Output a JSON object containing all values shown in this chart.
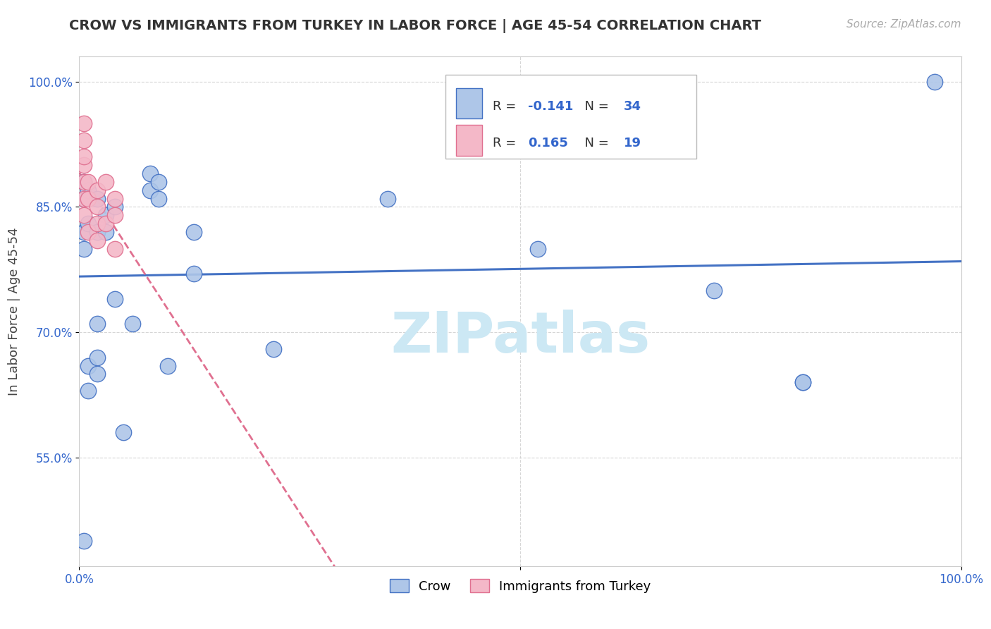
{
  "title": "CROW VS IMMIGRANTS FROM TURKEY IN LABOR FORCE | AGE 45-54 CORRELATION CHART",
  "source": "Source: ZipAtlas.com",
  "ylabel": "In Labor Force | Age 45-54",
  "crow_R": "-0.141",
  "crow_N": "34",
  "turkey_R": "0.165",
  "turkey_N": "19",
  "crow_color": "#aec6e8",
  "turkey_color": "#f4b8c8",
  "crow_line_color": "#4472c4",
  "turkey_line_color": "#e07090",
  "watermark_text": "ZIPatlas",
  "watermark_color": "#cce8f4",
  "xlim": [
    0.0,
    1.0
  ],
  "ylim": [
    0.42,
    1.03
  ],
  "yticks": [
    0.55,
    0.7,
    0.85,
    1.0
  ],
  "xticks": [
    0.0,
    0.5,
    1.0
  ],
  "xtick_labels": [
    "0.0%",
    "",
    "100.0%"
  ],
  "crow_points_x": [
    0.005,
    0.005,
    0.005,
    0.005,
    0.005,
    0.01,
    0.01,
    0.01,
    0.01,
    0.02,
    0.02,
    0.02,
    0.02,
    0.02,
    0.03,
    0.03,
    0.04,
    0.04,
    0.05,
    0.06,
    0.08,
    0.08,
    0.09,
    0.09,
    0.1,
    0.13,
    0.13,
    0.22,
    0.35,
    0.52,
    0.72,
    0.82,
    0.82,
    0.97
  ],
  "crow_points_y": [
    0.45,
    0.8,
    0.82,
    0.86,
    0.88,
    0.63,
    0.66,
    0.83,
    0.87,
    0.65,
    0.67,
    0.71,
    0.82,
    0.86,
    0.82,
    0.84,
    0.74,
    0.85,
    0.58,
    0.71,
    0.87,
    0.89,
    0.86,
    0.88,
    0.66,
    0.77,
    0.82,
    0.68,
    0.86,
    0.8,
    0.75,
    0.64,
    0.64,
    1.0
  ],
  "turkey_points_x": [
    0.005,
    0.005,
    0.005,
    0.005,
    0.005,
    0.005,
    0.005,
    0.01,
    0.01,
    0.01,
    0.02,
    0.02,
    0.02,
    0.02,
    0.03,
    0.03,
    0.04,
    0.04,
    0.04
  ],
  "turkey_points_y": [
    0.84,
    0.86,
    0.88,
    0.9,
    0.91,
    0.93,
    0.95,
    0.82,
    0.86,
    0.88,
    0.81,
    0.83,
    0.85,
    0.87,
    0.83,
    0.88,
    0.8,
    0.84,
    0.86
  ],
  "title_fontsize": 14,
  "source_fontsize": 11,
  "tick_fontsize": 12,
  "ylabel_fontsize": 13
}
